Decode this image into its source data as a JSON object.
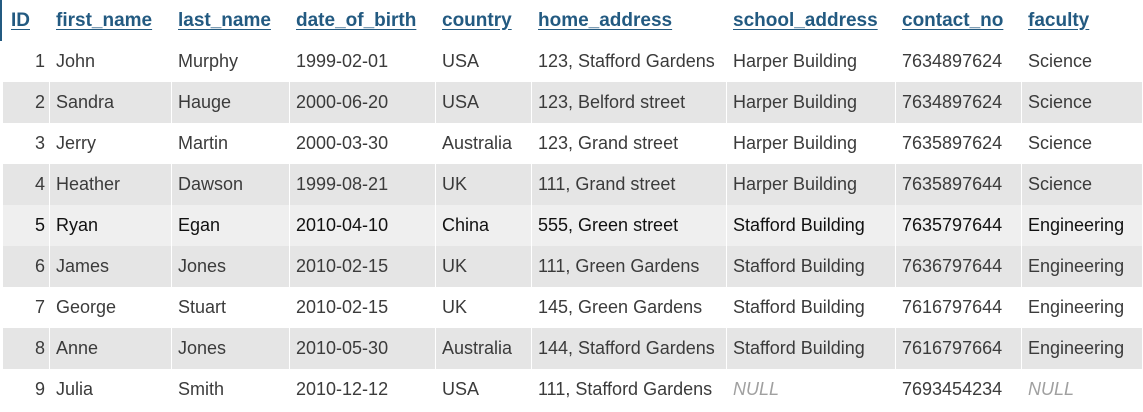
{
  "columns": [
    "ID",
    "first_name",
    "last_name",
    "date_of_birth",
    "country",
    "home_address",
    "school_address",
    "contact_no",
    "faculty"
  ],
  "rows": [
    {
      "id": "1",
      "first_name": "John",
      "last_name": "Murphy",
      "date_of_birth": "1999-02-01",
      "country": "USA",
      "home_address": "123, Stafford Gardens",
      "school_address": "Harper Building",
      "contact_no": "7634897624",
      "faculty": "Science"
    },
    {
      "id": "2",
      "first_name": "Sandra",
      "last_name": "Hauge",
      "date_of_birth": "2000-06-20",
      "country": "USA",
      "home_address": "123, Belford street",
      "school_address": "Harper Building",
      "contact_no": "7634897624",
      "faculty": "Science"
    },
    {
      "id": "3",
      "first_name": "Jerry",
      "last_name": "Martin",
      "date_of_birth": "2000-03-30",
      "country": "Australia",
      "home_address": "123, Grand street",
      "school_address": "Harper Building",
      "contact_no": "7635897624",
      "faculty": "Science"
    },
    {
      "id": "4",
      "first_name": "Heather",
      "last_name": "Dawson",
      "date_of_birth": "1999-08-21",
      "country": "UK",
      "home_address": "111, Grand street",
      "school_address": "Harper Building",
      "contact_no": "7635897644",
      "faculty": "Science"
    },
    {
      "id": "5",
      "first_name": "Ryan",
      "last_name": "Egan",
      "date_of_birth": "2010-04-10",
      "country": "China",
      "home_address": "555, Green street",
      "school_address": "Stafford Building",
      "contact_no": "7635797644",
      "faculty": "Engineering"
    },
    {
      "id": "6",
      "first_name": "James",
      "last_name": "Jones",
      "date_of_birth": "2010-02-15",
      "country": "UK",
      "home_address": "111, Green Gardens",
      "school_address": "Stafford Building",
      "contact_no": "7636797644",
      "faculty": "Engineering"
    },
    {
      "id": "7",
      "first_name": "George",
      "last_name": "Stuart",
      "date_of_birth": "2010-02-15",
      "country": "UK",
      "home_address": "145, Green Gardens",
      "school_address": "Stafford Building",
      "contact_no": "7616797644",
      "faculty": "Engineering"
    },
    {
      "id": "8",
      "first_name": "Anne",
      "last_name": "Jones",
      "date_of_birth": "2010-05-30",
      "country": "Australia",
      "home_address": "144, Stafford Gardens",
      "school_address": "Stafford Building",
      "contact_no": "7616797664",
      "faculty": "Engineering"
    },
    {
      "id": "9",
      "first_name": "Julia",
      "last_name": "Smith",
      "date_of_birth": "2010-12-12",
      "country": "USA",
      "home_address": "111, Stafford Gardens",
      "school_address": "NULL",
      "contact_no": "7693454234",
      "faculty": "NULL"
    }
  ],
  "highlighted_row_index": 4,
  "colors": {
    "header_text": "#235a81",
    "row_even_bg": "#e5e5e5",
    "row_highlight_bg": "#efefef",
    "null_text": "#a0a0a0"
  }
}
